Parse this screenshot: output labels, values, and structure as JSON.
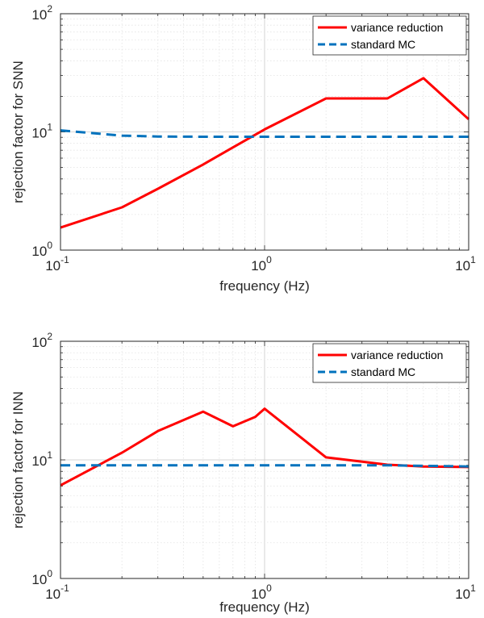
{
  "chart_data": [
    {
      "type": "line",
      "xlabel": "frequency (Hz)",
      "ylabel": "rejection factor for SNN",
      "xscale": "log",
      "yscale": "log",
      "xlim": [
        0.1,
        10
      ],
      "ylim": [
        1,
        100
      ],
      "grid": true,
      "legend_position": "top-right",
      "x_ticks": [
        {
          "base": "10",
          "exp": "-1"
        },
        {
          "base": "10",
          "exp": "0"
        },
        {
          "base": "10",
          "exp": "1"
        }
      ],
      "y_ticks": [
        {
          "base": "10",
          "exp": "0"
        },
        {
          "base": "10",
          "exp": "1"
        },
        {
          "base": "10",
          "exp": "2"
        }
      ],
      "series": [
        {
          "name": "variance reduction",
          "color": "#ff0000",
          "style": "solid",
          "x": [
            0.1,
            0.2,
            0.3,
            0.5,
            0.7,
            1,
            2,
            4,
            6,
            10
          ],
          "y": [
            1.55,
            2.3,
            3.3,
            5.3,
            7.4,
            10.5,
            19.2,
            19.2,
            28.5,
            12.8
          ]
        },
        {
          "name": "standard MC",
          "color": "#0072bd",
          "style": "dashed",
          "x": [
            0.1,
            0.2,
            0.3,
            0.5,
            0.7,
            1,
            2,
            4,
            6,
            10
          ],
          "y": [
            10.3,
            9.3,
            9.15,
            9.1,
            9.1,
            9.1,
            9.1,
            9.1,
            9.1,
            9.1
          ]
        }
      ]
    },
    {
      "type": "line",
      "xlabel": "frequency (Hz)",
      "ylabel": "rejection factor for INN",
      "xscale": "log",
      "yscale": "log",
      "xlim": [
        0.1,
        10
      ],
      "ylim": [
        1,
        100
      ],
      "grid": true,
      "legend_position": "top-right",
      "x_ticks": [
        {
          "base": "10",
          "exp": "-1"
        },
        {
          "base": "10",
          "exp": "0"
        },
        {
          "base": "10",
          "exp": "1"
        }
      ],
      "y_ticks": [
        {
          "base": "10",
          "exp": "0"
        },
        {
          "base": "10",
          "exp": "1"
        },
        {
          "base": "10",
          "exp": "2"
        }
      ],
      "series": [
        {
          "name": "variance reduction",
          "color": "#ff0000",
          "style": "solid",
          "x": [
            0.1,
            0.2,
            0.3,
            0.5,
            0.7,
            0.9,
            1,
            2,
            4,
            6,
            10
          ],
          "y": [
            6.1,
            11.5,
            17.5,
            25.5,
            19.2,
            23.0,
            27.0,
            10.5,
            9.1,
            8.8,
            8.7
          ]
        },
        {
          "name": "standard MC",
          "color": "#0072bd",
          "style": "dashed",
          "x": [
            0.1,
            0.2,
            0.3,
            0.5,
            0.7,
            1,
            2,
            4,
            6,
            10
          ],
          "y": [
            9.0,
            9.0,
            9.0,
            9.0,
            9.0,
            9.0,
            9.0,
            9.0,
            8.9,
            8.8
          ]
        }
      ]
    }
  ]
}
